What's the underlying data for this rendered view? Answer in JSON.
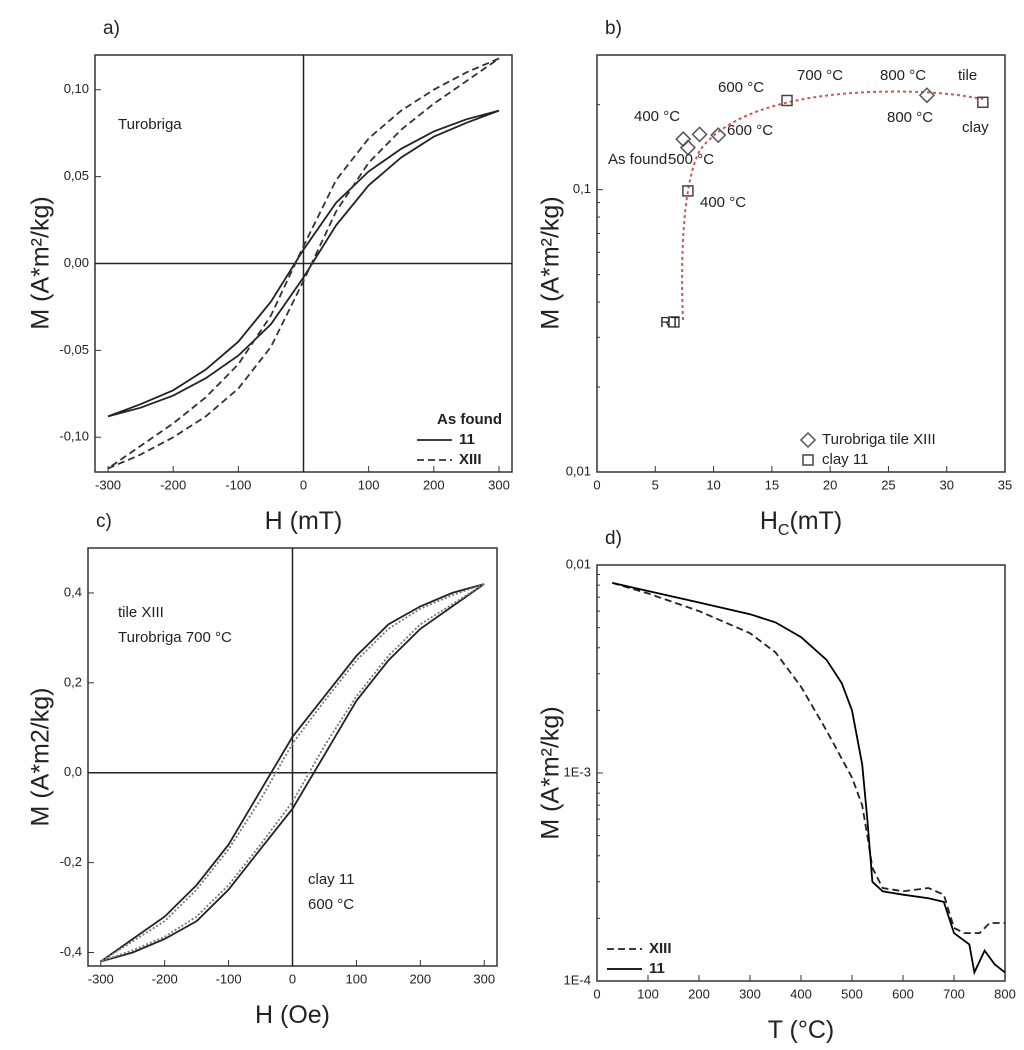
{
  "chart_data": [
    {
      "type": "line",
      "label": "a)",
      "xlabel": "H (mT)",
      "ylabel": "M (A*m²/kg)",
      "xlim": [
        -320,
        320
      ],
      "ylim": [
        -0.12,
        0.12
      ],
      "xticks": [
        -300,
        -200,
        -100,
        0,
        100,
        200,
        300
      ],
      "yticks": [
        {
          "value": -0.1,
          "label": "-0,10"
        },
        {
          "value": -0.05,
          "label": "-0,05"
        },
        {
          "value": 0,
          "label": "0,00"
        },
        {
          "value": 0.05,
          "label": "0,05"
        },
        {
          "value": 0.1,
          "label": "0,10"
        }
      ],
      "zero_axes": true,
      "legend": "lower right",
      "legend_title": "As found",
      "annotations": [
        "Turobriga"
      ],
      "series": [
        {
          "name": "11",
          "color": "#222222",
          "style": "solid",
          "x": [
            300,
            250,
            200,
            150,
            100,
            50,
            0,
            -50,
            -100,
            -150,
            -200,
            -250,
            -300,
            -250,
            -200,
            -150,
            -100,
            -50,
            0,
            50,
            100,
            150,
            200,
            250,
            300
          ],
          "values": [
            0.088,
            0.083,
            0.076,
            0.066,
            0.053,
            0.035,
            0.008,
            -0.022,
            -0.045,
            -0.061,
            -0.073,
            -0.081,
            -0.088,
            -0.083,
            -0.076,
            -0.066,
            -0.053,
            -0.035,
            -0.008,
            0.022,
            0.045,
            0.061,
            0.073,
            0.081,
            0.088
          ]
        },
        {
          "name": "XIII",
          "color": "#333333",
          "style": "dashed",
          "x": [
            300,
            250,
            200,
            150,
            100,
            50,
            0,
            -50,
            -100,
            -150,
            -200,
            -250,
            -300,
            -250,
            -200,
            -150,
            -100,
            -50,
            0,
            50,
            100,
            150,
            200,
            250,
            300
          ],
          "values": [
            0.118,
            0.11,
            0.1,
            0.088,
            0.072,
            0.048,
            0.01,
            -0.03,
            -0.058,
            -0.077,
            -0.092,
            -0.105,
            -0.118,
            -0.11,
            -0.1,
            -0.088,
            -0.072,
            -0.048,
            -0.01,
            0.03,
            0.058,
            0.077,
            0.092,
            0.105,
            0.118
          ]
        }
      ]
    },
    {
      "type": "scatter",
      "label": "b)",
      "xlabel": "H",
      "xlabel_subscript": "C",
      "xlabel_unit": "(mT)",
      "ylabel": "M (A*m²/kg)",
      "xlim": [
        0,
        35
      ],
      "ylim": [
        0.01,
        0.3
      ],
      "ylog": true,
      "xticks": [
        0,
        5,
        10,
        15,
        20,
        25,
        30,
        35
      ],
      "yticks": [
        {
          "value": 0.01,
          "label": "0,01"
        },
        {
          "value": 0.1,
          "label": "0,1"
        }
      ],
      "legend": "lower right",
      "annotations": [
        "600 °C",
        "700 °C",
        "800 °C",
        "tile",
        "400 °C",
        "600 °C",
        "As found",
        "500 °C",
        "400 °C",
        "RT",
        "800 °C",
        "clay"
      ],
      "series": [
        {
          "name": "Turobriga tile XIII",
          "color": "#555555",
          "marker": "diamond",
          "x": [
            7.8,
            7.4,
            8.8,
            10.4,
            28.3
          ],
          "values": [
            0.141,
            0.151,
            0.157,
            0.156,
            0.216
          ]
        },
        {
          "name": "clay 11",
          "color": "#444444",
          "marker": "square",
          "x": [
            6.6,
            7.8,
            16.3,
            33.1
          ],
          "values": [
            0.034,
            0.099,
            0.207,
            0.204
          ]
        }
      ]
    },
    {
      "type": "line",
      "label": "c)",
      "xlabel": "H (Oe)",
      "ylabel": "M (A*m2/kg)",
      "xlim": [
        -320,
        320
      ],
      "ylim": [
        -0.43,
        0.5
      ],
      "xticks": [
        -300,
        -200,
        -100,
        0,
        100,
        200,
        300
      ],
      "yticks": [
        {
          "value": -0.4,
          "label": "-0,4"
        },
        {
          "value": -0.2,
          "label": "-0,2"
        },
        {
          "value": 0,
          "label": "0,0"
        },
        {
          "value": 0.2,
          "label": "0,2"
        },
        {
          "value": 0.4,
          "label": "0,4"
        }
      ],
      "zero_axes": true,
      "annotations": [
        "tile XIII",
        "Turobriga 700 °C",
        "clay 11",
        "600 °C"
      ],
      "series": [
        {
          "color": "#222222",
          "style": "solid",
          "x": [
            300,
            250,
            200,
            150,
            100,
            50,
            0,
            -50,
            -100,
            -150,
            -200,
            -250,
            -300,
            -250,
            -200,
            -150,
            -100,
            -50,
            0,
            50,
            100,
            150,
            200,
            250,
            300
          ],
          "values": [
            0.42,
            0.4,
            0.37,
            0.33,
            0.26,
            0.17,
            0.08,
            -0.04,
            -0.16,
            -0.25,
            -0.32,
            -0.37,
            -0.42,
            -0.4,
            -0.37,
            -0.33,
            -0.26,
            -0.17,
            -0.08,
            0.04,
            0.16,
            0.25,
            0.32,
            0.37,
            0.42
          ]
        },
        {
          "color": "#777777",
          "style": "dotted",
          "x": [
            300,
            250,
            200,
            150,
            100,
            50,
            0,
            -50,
            -100,
            -150,
            -200,
            -250,
            -300,
            -250,
            -200,
            -150,
            -100,
            -50,
            0,
            50,
            100,
            150,
            200,
            250,
            300
          ],
          "values": [
            0.42,
            0.395,
            0.365,
            0.32,
            0.25,
            0.16,
            0.065,
            -0.06,
            -0.17,
            -0.26,
            -0.33,
            -0.375,
            -0.42,
            -0.395,
            -0.365,
            -0.32,
            -0.25,
            -0.16,
            -0.065,
            0.06,
            0.17,
            0.26,
            0.33,
            0.375,
            0.42
          ]
        }
      ]
    },
    {
      "type": "line",
      "label": "d)",
      "xlabel": "T (°C)",
      "ylabel": "M (A*m²/kg)",
      "xlim": [
        0,
        800
      ],
      "ylim": [
        0.0001,
        0.01
      ],
      "ylog": true,
      "xticks": [
        0,
        100,
        200,
        300,
        400,
        500,
        600,
        700,
        800
      ],
      "yticks": [
        {
          "value": 0.0001,
          "label": "1E-4"
        },
        {
          "value": 0.001,
          "label": "1E-3"
        },
        {
          "value": 0.01,
          "label": "0,01"
        }
      ],
      "legend": "lower left",
      "series": [
        {
          "name": "XIII",
          "color": "#222222",
          "style": "dashed",
          "x": [
            30,
            100,
            200,
            300,
            350,
            400,
            450,
            500,
            520,
            530,
            540,
            560,
            600,
            650,
            680,
            700,
            720,
            750,
            770,
            800
          ],
          "values": [
            0.0082,
            0.0073,
            0.006,
            0.0047,
            0.0038,
            0.0026,
            0.0016,
            0.00095,
            0.0007,
            0.0005,
            0.00035,
            0.00028,
            0.00027,
            0.00028,
            0.00026,
            0.00018,
            0.00017,
            0.00017,
            0.00019,
            0.00019
          ]
        },
        {
          "name": "11",
          "color": "#000000",
          "style": "solid",
          "x": [
            30,
            100,
            200,
            300,
            350,
            400,
            450,
            480,
            500,
            520,
            530,
            540,
            560,
            600,
            650,
            680,
            700,
            730,
            740,
            760,
            780,
            800
          ],
          "values": [
            0.0082,
            0.0075,
            0.0066,
            0.0058,
            0.0053,
            0.0045,
            0.0035,
            0.0027,
            0.002,
            0.0011,
            0.0006,
            0.0003,
            0.00027,
            0.00026,
            0.00025,
            0.00024,
            0.00017,
            0.00015,
            0.00011,
            0.00014,
            0.00012,
            0.00011
          ]
        }
      ]
    }
  ]
}
